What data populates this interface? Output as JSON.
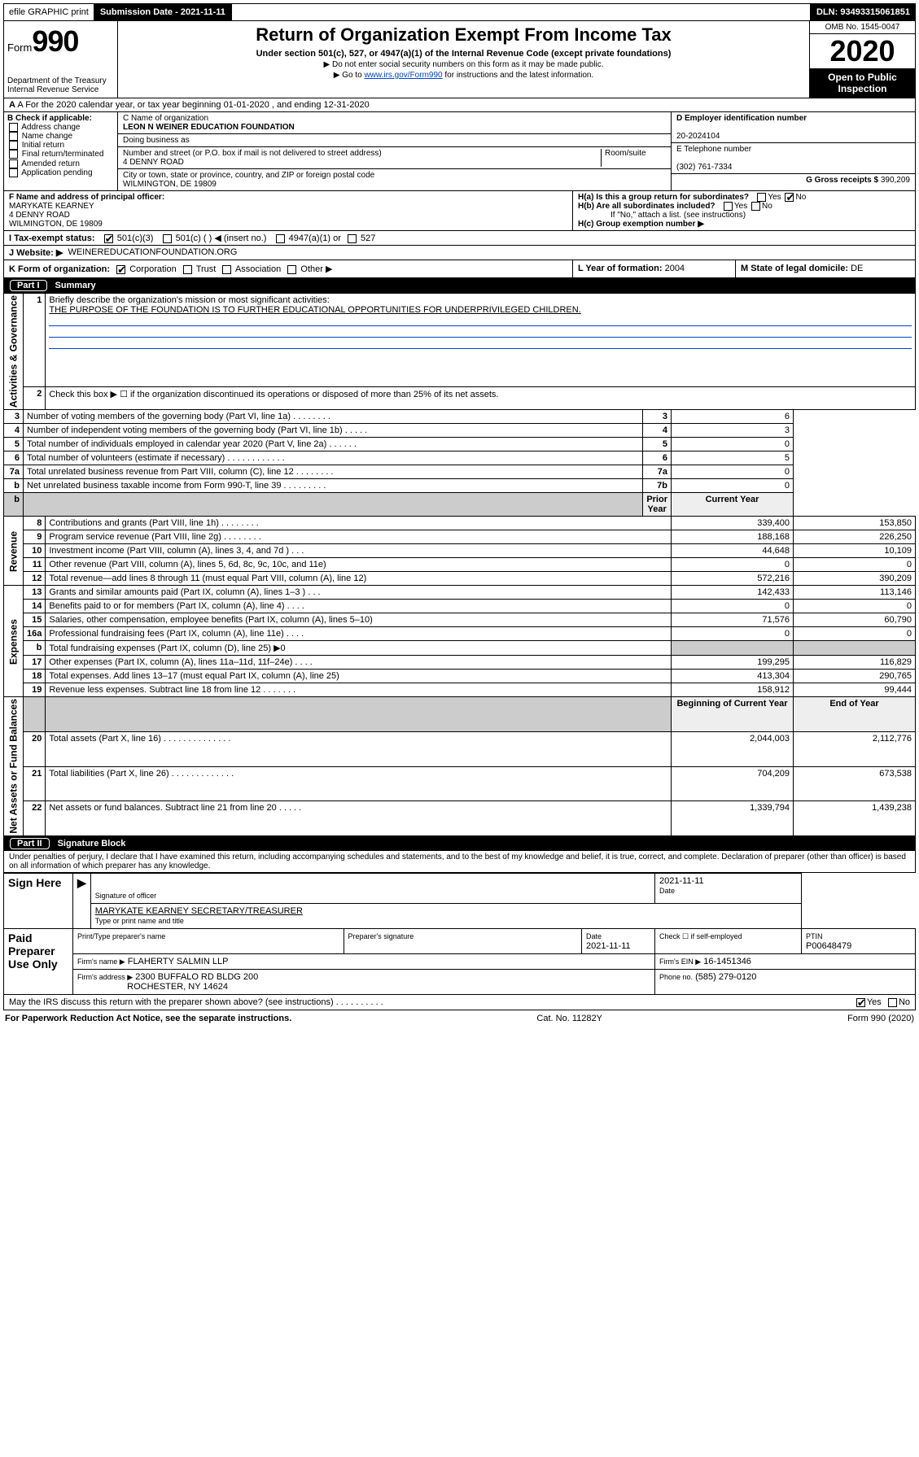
{
  "topbar": {
    "efile": "efile GRAPHIC print",
    "sub_label": "Submission Date - 2021-11-11",
    "dln": "DLN: 93493315061851"
  },
  "header": {
    "form_word": "Form",
    "form_no": "990",
    "title": "Return of Organization Exempt From Income Tax",
    "subtitle": "Under section 501(c), 527, or 4947(a)(1) of the Internal Revenue Code (except private foundations)",
    "note1": "▶ Do not enter social security numbers on this form as it may be made public.",
    "note2_pre": "▶ Go to ",
    "note2_link": "www.irs.gov/Form990",
    "note2_post": " for instructions and the latest information.",
    "dept1": "Department of the Treasury",
    "dept2": "Internal Revenue Service",
    "omb": "OMB No. 1545-0047",
    "year": "2020",
    "open": "Open to Public Inspection"
  },
  "line_a": "A For the 2020 calendar year, or tax year beginning 01-01-2020   , and ending 12-31-2020",
  "box_b": {
    "label": "B Check if applicable:",
    "opts": [
      "Address change",
      "Name change",
      "Initial return",
      "Final return/terminated",
      "Amended return",
      "Application pending"
    ]
  },
  "box_c": {
    "name_label": "C Name of organization",
    "name": "LEON N WEINER EDUCATION FOUNDATION",
    "dba": "Doing business as",
    "addr_label": "Number and street (or P.O. box if mail is not delivered to street address)",
    "room": "Room/suite",
    "addr": "4 DENNY ROAD",
    "city_label": "City or town, state or province, country, and ZIP or foreign postal code",
    "city": "WILMINGTON, DE  19809"
  },
  "box_d": {
    "label": "D Employer identification number",
    "val": "20-2024104"
  },
  "box_e": {
    "label": "E Telephone number",
    "val": "(302) 761-7334"
  },
  "box_g": {
    "label": "G Gross receipts $",
    "val": "390,209"
  },
  "box_f": {
    "label": "F  Name and address of principal officer:",
    "name": "MARYKATE KEARNEY",
    "addr1": "4 DENNY ROAD",
    "addr2": "WILMINGTON, DE  19809"
  },
  "box_h": {
    "a": "H(a)  Is this a group return for subordinates?",
    "b": "H(b)  Are all subordinates included?",
    "b_note": "If \"No,\" attach a list. (see instructions)",
    "c": "H(c)  Group exemption number ▶",
    "yes": "Yes",
    "no": "No"
  },
  "box_i": {
    "label": "I   Tax-exempt status:",
    "o1": "501(c)(3)",
    "o2": "501(c) (   ) ◀ (insert no.)",
    "o3": "4947(a)(1) or",
    "o4": "527"
  },
  "box_j": {
    "label": "J   Website: ▶",
    "val": "WEINEREDUCATIONFOUNDATION.ORG"
  },
  "box_k": {
    "label": "K Form of organization:",
    "o1": "Corporation",
    "o2": "Trust",
    "o3": "Association",
    "o4": "Other ▶"
  },
  "box_l": {
    "label": "L Year of formation:",
    "val": "2004"
  },
  "box_m": {
    "label": "M State of legal domicile:",
    "val": "DE"
  },
  "part1": {
    "hdr": "Part I",
    "title": "Summary",
    "l1": "Briefly describe the organization's mission or most significant activities:",
    "l1v": "THE PURPOSE OF THE FOUNDATION IS TO FURTHER EDUCATIONAL OPPORTUNITIES FOR UNDERPRIVILEGED CHILDREN.",
    "l2": "Check this box ▶ ☐  if the organization discontinued its operations or disposed of more than 25% of its net assets.",
    "prior": "Prior Year",
    "curr": "Current Year",
    "beg": "Beginning of Current Year",
    "end": "End of Year",
    "rows_gov": [
      {
        "n": "3",
        "t": "Number of voting members of the governing body (Part VI, line 1a)   .    .    .    .    .    .    .    .",
        "bn": "3",
        "v": "6"
      },
      {
        "n": "4",
        "t": "Number of independent voting members of the governing body (Part VI, line 1b)   .    .    .    .    .",
        "bn": "4",
        "v": "3"
      },
      {
        "n": "5",
        "t": "Total number of individuals employed in calendar year 2020 (Part V, line 2a)   .    .    .    .    .    .",
        "bn": "5",
        "v": "0"
      },
      {
        "n": "6",
        "t": "Total number of volunteers (estimate if necessary)   .    .    .    .    .    .    .    .    .    .    .    .",
        "bn": "6",
        "v": "5"
      },
      {
        "n": "7a",
        "t": "Total unrelated business revenue from Part VIII, column (C), line 12   .    .    .    .    .    .    .    .",
        "bn": "7a",
        "v": "0"
      },
      {
        "n": "b",
        "t": "Net unrelated business taxable income from Form 990-T, line 39   .    .    .    .    .    .    .    .    .",
        "bn": "7b",
        "v": "0"
      }
    ],
    "rows_rev": [
      {
        "n": "8",
        "t": "Contributions and grants (Part VIII, line 1h)   .    .    .    .    .    .    .    .",
        "p": "339,400",
        "c": "153,850"
      },
      {
        "n": "9",
        "t": "Program service revenue (Part VIII, line 2g)   .    .    .    .    .    .    .    .",
        "p": "188,168",
        "c": "226,250"
      },
      {
        "n": "10",
        "t": "Investment income (Part VIII, column (A), lines 3, 4, and 7d )   .    .    .",
        "p": "44,648",
        "c": "10,109"
      },
      {
        "n": "11",
        "t": "Other revenue (Part VIII, column (A), lines 5, 6d, 8c, 9c, 10c, and 11e)",
        "p": "0",
        "c": "0"
      },
      {
        "n": "12",
        "t": "Total revenue—add lines 8 through 11 (must equal Part VIII, column (A), line 12)",
        "p": "572,216",
        "c": "390,209"
      }
    ],
    "rows_exp": [
      {
        "n": "13",
        "t": "Grants and similar amounts paid (Part IX, column (A), lines 1–3 )   .    .    .",
        "p": "142,433",
        "c": "113,146"
      },
      {
        "n": "14",
        "t": "Benefits paid to or for members (Part IX, column (A), line 4)   .    .    .    .",
        "p": "0",
        "c": "0"
      },
      {
        "n": "15",
        "t": "Salaries, other compensation, employee benefits (Part IX, column (A), lines 5–10)",
        "p": "71,576",
        "c": "60,790"
      },
      {
        "n": "16a",
        "t": "Professional fundraising fees (Part IX, column (A), line 11e)   .    .    .    .",
        "p": "0",
        "c": "0"
      },
      {
        "n": "b",
        "t": "Total fundraising expenses (Part IX, column (D), line 25) ▶0",
        "shade": true
      },
      {
        "n": "17",
        "t": "Other expenses (Part IX, column (A), lines 11a–11d, 11f–24e)   .    .    .    .",
        "p": "199,295",
        "c": "116,829"
      },
      {
        "n": "18",
        "t": "Total expenses. Add lines 13–17 (must equal Part IX, column (A), line 25)",
        "p": "413,304",
        "c": "290,765"
      },
      {
        "n": "19",
        "t": "Revenue less expenses. Subtract line 18 from line 12   .    .    .    .    .    .    .",
        "p": "158,912",
        "c": "99,444"
      }
    ],
    "rows_net": [
      {
        "n": "20",
        "t": "Total assets (Part X, line 16)   .    .    .    .    .    .    .    .    .    .    .    .    .    .",
        "p": "2,044,003",
        "c": "2,112,776"
      },
      {
        "n": "21",
        "t": "Total liabilities (Part X, line 26)   .    .    .    .    .    .    .    .    .    .    .    .    .",
        "p": "704,209",
        "c": "673,538"
      },
      {
        "n": "22",
        "t": "Net assets or fund balances. Subtract line 21 from line 20   .    .    .    .    .",
        "p": "1,339,794",
        "c": "1,439,238"
      }
    ],
    "side_gov": "Activities & Governance",
    "side_rev": "Revenue",
    "side_exp": "Expenses",
    "side_net": "Net Assets or Fund Balances"
  },
  "part2": {
    "hdr": "Part II",
    "title": "Signature Block",
    "decl": "Under penalties of perjury, I declare that I have examined this return, including accompanying schedules and statements, and to the best of my knowledge and belief, it is true, correct, and complete. Declaration of preparer (other than officer) is based on all information of which preparer has any knowledge.",
    "sign": "Sign Here",
    "sig_officer": "Signature of officer",
    "date": "Date",
    "date_v": "2021-11-11",
    "name": "MARYKATE KEARNEY SECRETARY/TREASURER",
    "name_l": "Type or print name and title",
    "paid": "Paid Preparer Use Only",
    "pp_name_l": "Print/Type preparer's name",
    "pp_sig_l": "Preparer's signature",
    "pp_date_l": "Date",
    "pp_date_v": "2021-11-11",
    "pp_check": "Check ☐ if self-employed",
    "ptin_l": "PTIN",
    "ptin_v": "P00648479",
    "firm_l": "Firm's name    ▶",
    "firm_v": "FLAHERTY SALMIN LLP",
    "firm_ein_l": "Firm's EIN ▶",
    "firm_ein_v": "16-1451346",
    "firm_addr_l": "Firm's address ▶",
    "firm_addr1": "2300 BUFFALO RD BLDG 200",
    "firm_addr2": "ROCHESTER, NY  14624",
    "phone_l": "Phone no.",
    "phone_v": "(585) 279-0120",
    "discuss": "May the IRS discuss this return with the preparer shown above? (see instructions)   .    .    .    .    .    .    .    .    .    .",
    "yes": "Yes",
    "no": "No"
  },
  "footer": {
    "l": "For Paperwork Reduction Act Notice, see the separate instructions.",
    "c": "Cat. No. 11282Y",
    "r": "Form 990 (2020)"
  }
}
